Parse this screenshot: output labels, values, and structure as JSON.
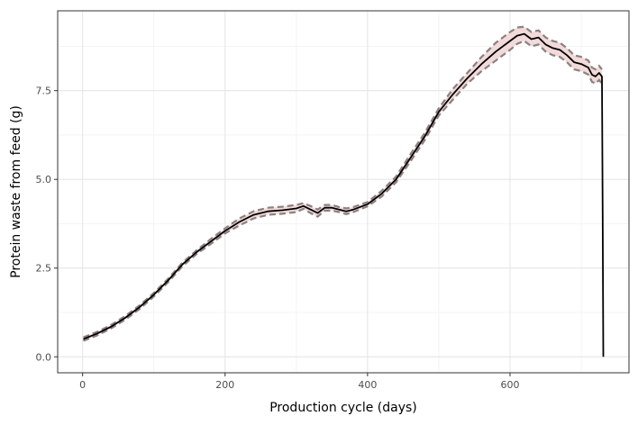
{
  "chart_data": {
    "type": "line",
    "title": "",
    "xlabel": "Production cycle (days)",
    "ylabel": "Protein waste from feed (g)",
    "xlim": [
      -35,
      767
    ],
    "ylim": [
      -0.45,
      9.75
    ],
    "x_ticks": [
      0,
      200,
      400,
      600
    ],
    "x_tick_labels": [
      "0",
      "200",
      "400",
      "600"
    ],
    "y_ticks": [
      0,
      2.5,
      5,
      7.5
    ],
    "y_tick_labels": [
      "0.0",
      "2.5",
      "5.0",
      "7.5"
    ],
    "grid": true,
    "legend": "none",
    "colors": {
      "mean_line": "#000000",
      "bounds_line": "#8c8080",
      "ribbon_fill": "#f2dada",
      "grid_major": "#e6e6e6",
      "grid_minor": "#f2f2f2",
      "panel_border": "#333333"
    },
    "series": [
      {
        "role": "mean",
        "style": "solid",
        "x": [
          1,
          20,
          40,
          60,
          80,
          100,
          120,
          140,
          160,
          180,
          200,
          220,
          240,
          260,
          280,
          300,
          310,
          320,
          330,
          340,
          350,
          360,
          370,
          380,
          400,
          420,
          440,
          460,
          480,
          500,
          520,
          540,
          560,
          580,
          600,
          610,
          620,
          630,
          640,
          650,
          660,
          670,
          680,
          690,
          700,
          710,
          715,
          720,
          725,
          729,
          730,
          731
        ],
        "y": [
          0.5,
          0.65,
          0.85,
          1.1,
          1.4,
          1.75,
          2.15,
          2.6,
          2.95,
          3.25,
          3.55,
          3.8,
          4.0,
          4.1,
          4.13,
          4.18,
          4.25,
          4.15,
          4.05,
          4.2,
          4.2,
          4.15,
          4.1,
          4.15,
          4.3,
          4.6,
          5.0,
          5.6,
          6.2,
          6.9,
          7.4,
          7.85,
          8.25,
          8.6,
          8.9,
          9.05,
          9.1,
          8.95,
          9.0,
          8.8,
          8.7,
          8.65,
          8.5,
          8.3,
          8.25,
          8.15,
          7.95,
          7.9,
          8.0,
          7.9,
          4.0,
          0.0
        ]
      },
      {
        "role": "upper",
        "style": "dashed",
        "x": [
          1,
          20,
          40,
          60,
          80,
          100,
          120,
          140,
          160,
          180,
          200,
          220,
          240,
          260,
          280,
          300,
          310,
          320,
          330,
          340,
          350,
          360,
          370,
          380,
          400,
          420,
          440,
          460,
          480,
          500,
          520,
          540,
          560,
          580,
          600,
          610,
          620,
          630,
          640,
          650,
          660,
          670,
          680,
          690,
          700,
          710,
          715,
          720,
          725,
          729
        ],
        "y": [
          0.55,
          0.7,
          0.9,
          1.15,
          1.45,
          1.8,
          2.2,
          2.65,
          3.0,
          3.32,
          3.62,
          3.9,
          4.1,
          4.2,
          4.23,
          4.28,
          4.33,
          4.25,
          4.15,
          4.28,
          4.28,
          4.22,
          4.18,
          4.22,
          4.36,
          4.68,
          5.08,
          5.7,
          6.3,
          7.0,
          7.55,
          8.0,
          8.45,
          8.85,
          9.15,
          9.28,
          9.3,
          9.15,
          9.2,
          9.0,
          8.9,
          8.85,
          8.7,
          8.5,
          8.45,
          8.35,
          8.15,
          8.1,
          8.2,
          8.1
        ]
      },
      {
        "role": "lower",
        "style": "dashed",
        "x": [
          1,
          20,
          40,
          60,
          80,
          100,
          120,
          140,
          160,
          180,
          200,
          220,
          240,
          260,
          280,
          300,
          310,
          320,
          330,
          340,
          350,
          360,
          370,
          380,
          400,
          420,
          440,
          460,
          480,
          500,
          520,
          540,
          560,
          580,
          600,
          610,
          620,
          630,
          640,
          650,
          660,
          670,
          680,
          690,
          700,
          710,
          715,
          720,
          725,
          729
        ],
        "y": [
          0.45,
          0.6,
          0.8,
          1.05,
          1.35,
          1.7,
          2.1,
          2.55,
          2.9,
          3.18,
          3.48,
          3.7,
          3.9,
          4.0,
          4.03,
          4.08,
          4.17,
          4.05,
          3.95,
          4.12,
          4.12,
          4.08,
          4.02,
          4.08,
          4.24,
          4.52,
          4.92,
          5.5,
          6.1,
          6.8,
          7.25,
          7.7,
          8.05,
          8.35,
          8.65,
          8.82,
          8.9,
          8.75,
          8.8,
          8.6,
          8.5,
          8.45,
          8.3,
          8.1,
          8.05,
          7.95,
          7.75,
          7.7,
          7.8,
          7.7
        ]
      }
    ]
  }
}
